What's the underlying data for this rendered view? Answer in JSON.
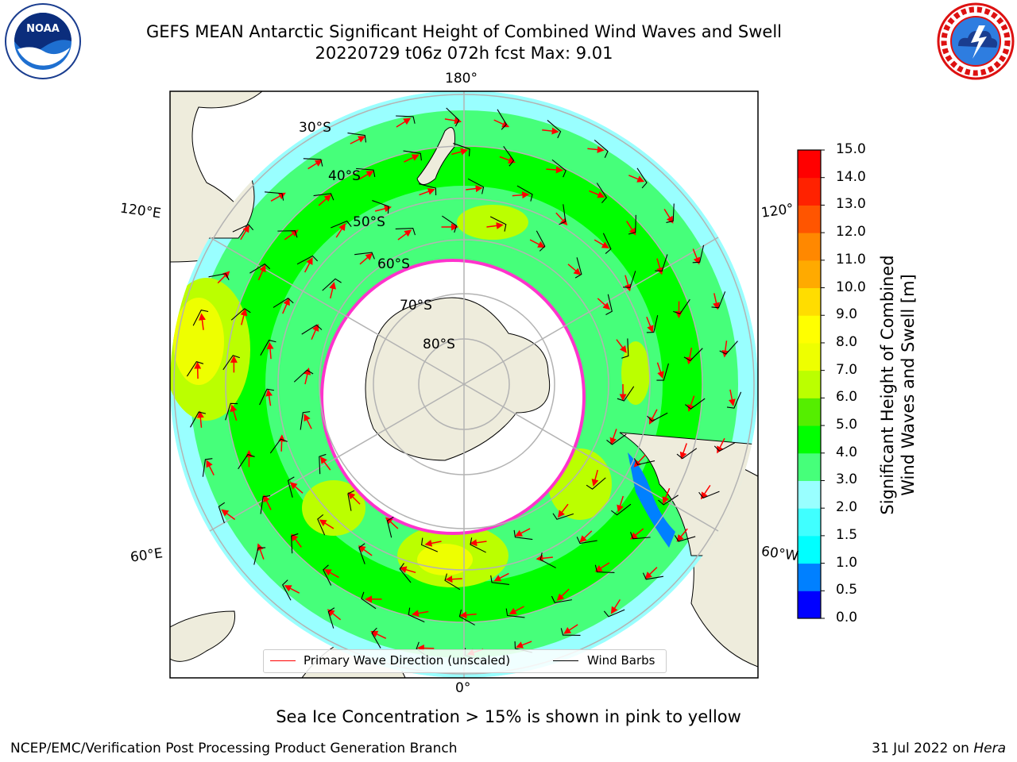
{
  "title": {
    "line1": "GEFS MEAN Antarctic Significant Height of Combined Wind Waves and Swell",
    "line2": "20220729 t06z 072h fcst   Max: 9.01"
  },
  "logos": {
    "left": "noaa-logo",
    "right": "nws-logo"
  },
  "map": {
    "projection": "south-polar-stereographic",
    "meridian_labels": [
      "180°",
      "120°E",
      "120°",
      "60°E",
      "60°W",
      "0°"
    ],
    "latitude_labels": [
      "30°S",
      "40°S",
      "50°S",
      "60°S",
      "70°S",
      "80°S"
    ],
    "colors": {
      "land": "#eeecdc",
      "ice": "#ffffff",
      "ice_edge": "#ff33cc",
      "grid": "#b3b3b3"
    }
  },
  "legend": {
    "items": [
      {
        "label": "Primary Wave Direction (unscaled)",
        "color": "#ff0000"
      },
      {
        "label": "Wind Barbs",
        "color": "#000000"
      }
    ]
  },
  "colorbar": {
    "title_line1": "Significant Height of Combined",
    "title_line2": "Wind Waves and Swell [m]",
    "ticks": [
      "0.0",
      "0.5",
      "1.0",
      "1.5",
      "2.0",
      "3.0",
      "4.0",
      "5.0",
      "6.0",
      "7.0",
      "8.0",
      "9.0",
      "10.0",
      "11.0",
      "12.0",
      "13.0",
      "14.0",
      "15.0"
    ],
    "colors": [
      "#0000ff",
      "#0080ff",
      "#00ffff",
      "#40ffff",
      "#99ffff",
      "#46ff7a",
      "#00ff00",
      "#55ee00",
      "#bbff00",
      "#eeff00",
      "#ffff00",
      "#ffdd00",
      "#ffaa00",
      "#ff8800",
      "#ff5500",
      "#ff2200",
      "#ff0000"
    ]
  },
  "notes": {
    "sea_ice": "Sea Ice Concentration > 15% is shown in pink to yellow"
  },
  "footer": {
    "left": "NCEP/EMC/Verification Post Processing Product Generation Branch",
    "right_date": "31 Jul 2022 on ",
    "right_system": "Hera"
  }
}
